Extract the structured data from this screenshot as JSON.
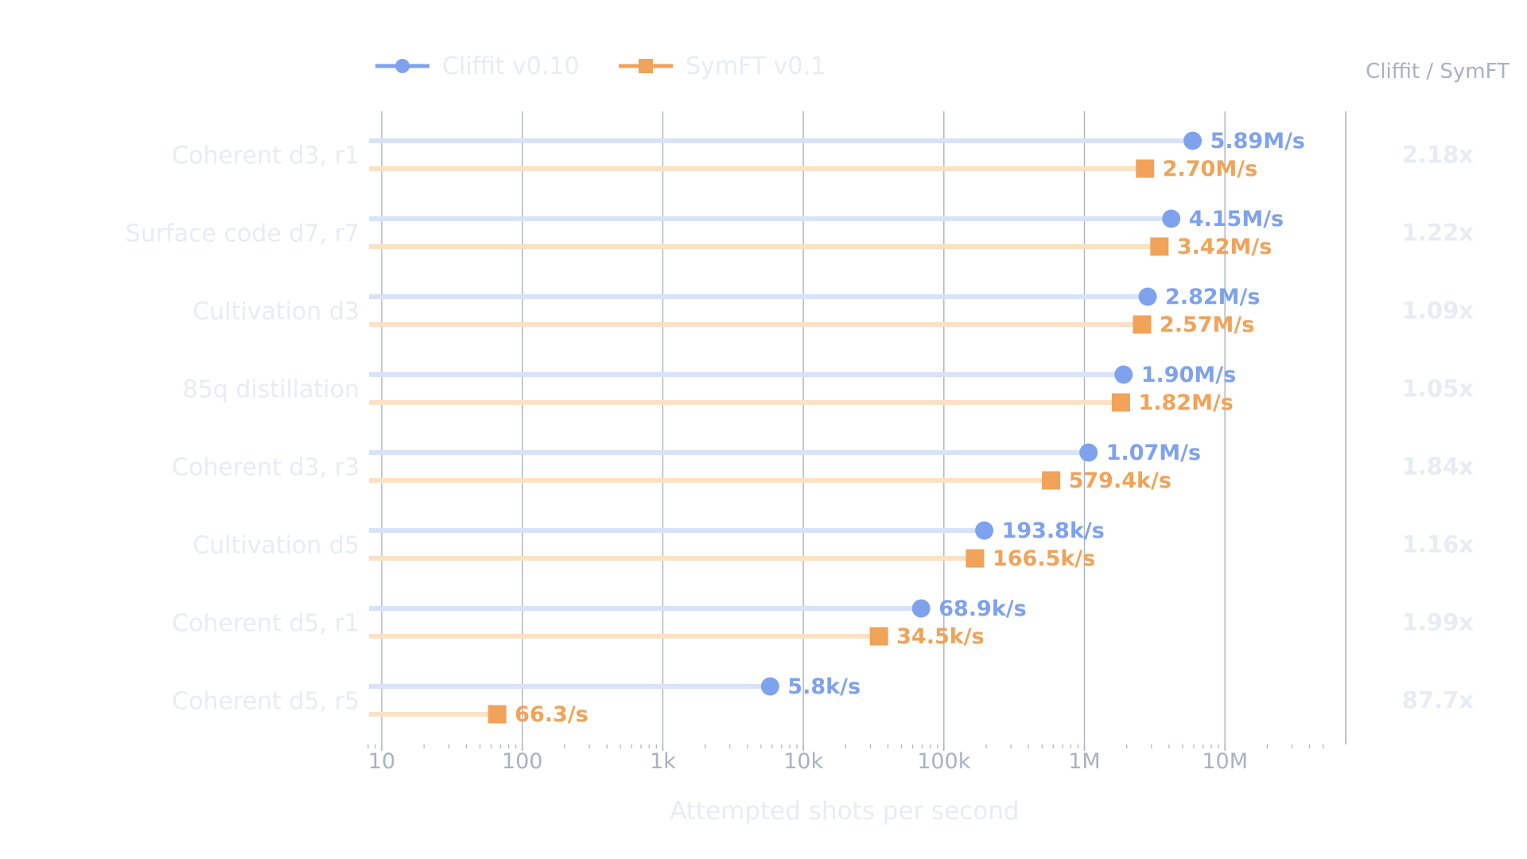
{
  "chart_data": {
    "type": "dot-plot",
    "x_scale": "log",
    "xlabel": "Attempted shots per second",
    "xlim": [
      8,
      50000000
    ],
    "grid": true,
    "legend_position": "top-left",
    "ratio_header": "Cliffit / SymFT",
    "categories": [
      "Coherent d3, r1",
      "Surface code d7, r7",
      "Cultivation d3",
      "85q distillation",
      "Coherent d3, r3",
      "Cultivation d5",
      "Coherent d5, r1",
      "Coherent d5, r5"
    ],
    "series": [
      {
        "name": "Cliffit v0.10",
        "color": "#7fa2ee",
        "marker": "circle",
        "values": [
          5890000,
          4150000,
          2820000,
          1900000,
          1070000,
          193800,
          68900,
          5800
        ],
        "value_labels": [
          "5.89M/s",
          "4.15M/s",
          "2.82M/s",
          "1.90M/s",
          "1.07M/s",
          "193.8k/s",
          "68.9k/s",
          "5.8k/s"
        ]
      },
      {
        "name": "SymFT v0.1",
        "color": "#f0a359",
        "marker": "square",
        "values": [
          2700000,
          3420000,
          2570000,
          1820000,
          579400,
          166500,
          34500,
          66.3
        ],
        "value_labels": [
          "2.70M/s",
          "3.42M/s",
          "2.57M/s",
          "1.82M/s",
          "579.4k/s",
          "166.5k/s",
          "34.5k/s",
          "66.3/s"
        ]
      }
    ],
    "ratios": [
      "2.18x",
      "1.22x",
      "1.09x",
      "1.05x",
      "1.84x",
      "1.16x",
      "1.99x",
      "87.7x"
    ],
    "x_ticks": [
      {
        "value": 10,
        "label": "10"
      },
      {
        "value": 100,
        "label": "100"
      },
      {
        "value": 1000,
        "label": "1k"
      },
      {
        "value": 10000,
        "label": "10k"
      },
      {
        "value": 100000,
        "label": "100k"
      },
      {
        "value": 1000000,
        "label": "1M"
      },
      {
        "value": 10000000,
        "label": "10M"
      }
    ]
  }
}
